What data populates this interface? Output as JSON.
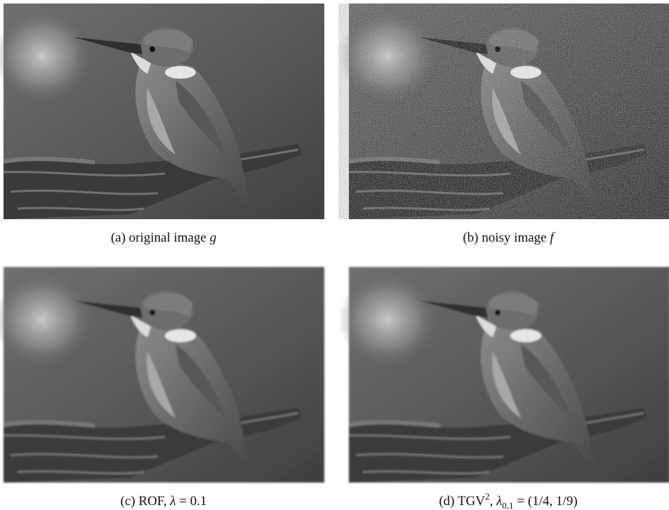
{
  "figure": {
    "panels": [
      {
        "label": "(a)",
        "text": "original image",
        "symbol": "g"
      },
      {
        "label": "(b)",
        "text": "noisy image",
        "symbol": "f"
      },
      {
        "label": "(c)",
        "text": "ROF,",
        "symbol": "λ",
        "rest": "= 0.1"
      },
      {
        "label": "(d)",
        "text": "TGV",
        "sup": "2",
        "comma": ",",
        "symbol": "λ",
        "sub": "0,1",
        "rest": "= (1/4, 1/9)"
      }
    ]
  }
}
